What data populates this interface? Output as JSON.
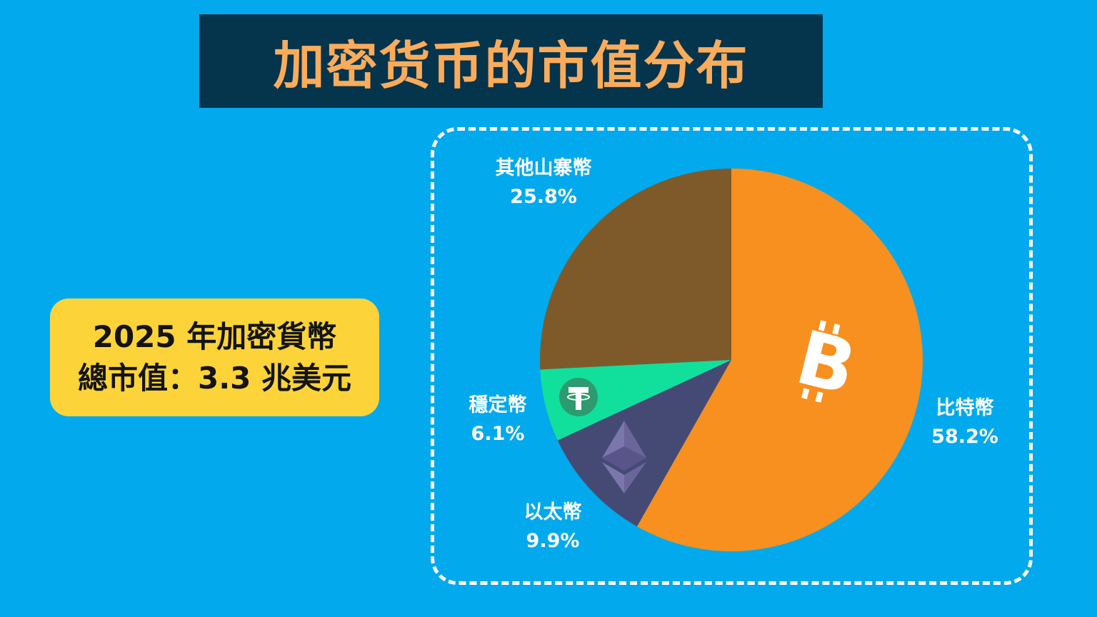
{
  "title": "加密货币的市值分布",
  "summary": {
    "line1": "2025 年加密貨幣",
    "line2": "總市值：3.3 兆美元"
  },
  "colors": {
    "background": "#02a9ec",
    "title_bg": "#05344d",
    "title_text": "#fbac5b",
    "summary_bg": "#fcd43a"
  },
  "chart_data": {
    "type": "pie",
    "title": "加密货币的市值分布",
    "subtitle": "2025 年加密貨幣總市值：3.3 兆美元",
    "unit": "%",
    "start_angle": "12 o'clock, clockwise",
    "categories": [
      "比特幣",
      "以太幣",
      "穩定幣",
      "其他山寨幣"
    ],
    "values": [
      58.2,
      9.9,
      6.1,
      25.8
    ],
    "labels": [
      "58.2%",
      "9.9%",
      "6.1%",
      "25.8%"
    ],
    "colors": [
      "#f7901e",
      "#454a75",
      "#11e09c",
      "#7e5a2b"
    ],
    "icons": [
      "bitcoin-icon",
      "ethereum-icon",
      "tether-icon",
      null
    ],
    "legend": "none (direct labels)"
  },
  "labels": {
    "btc_name": "比特幣",
    "btc_pct": "58.2%",
    "eth_name": "以太幣",
    "eth_pct": "9.9%",
    "stable_name": "穩定幣",
    "stable_pct": "6.1%",
    "other_name": "其他山寨幣",
    "other_pct": "25.8%"
  }
}
